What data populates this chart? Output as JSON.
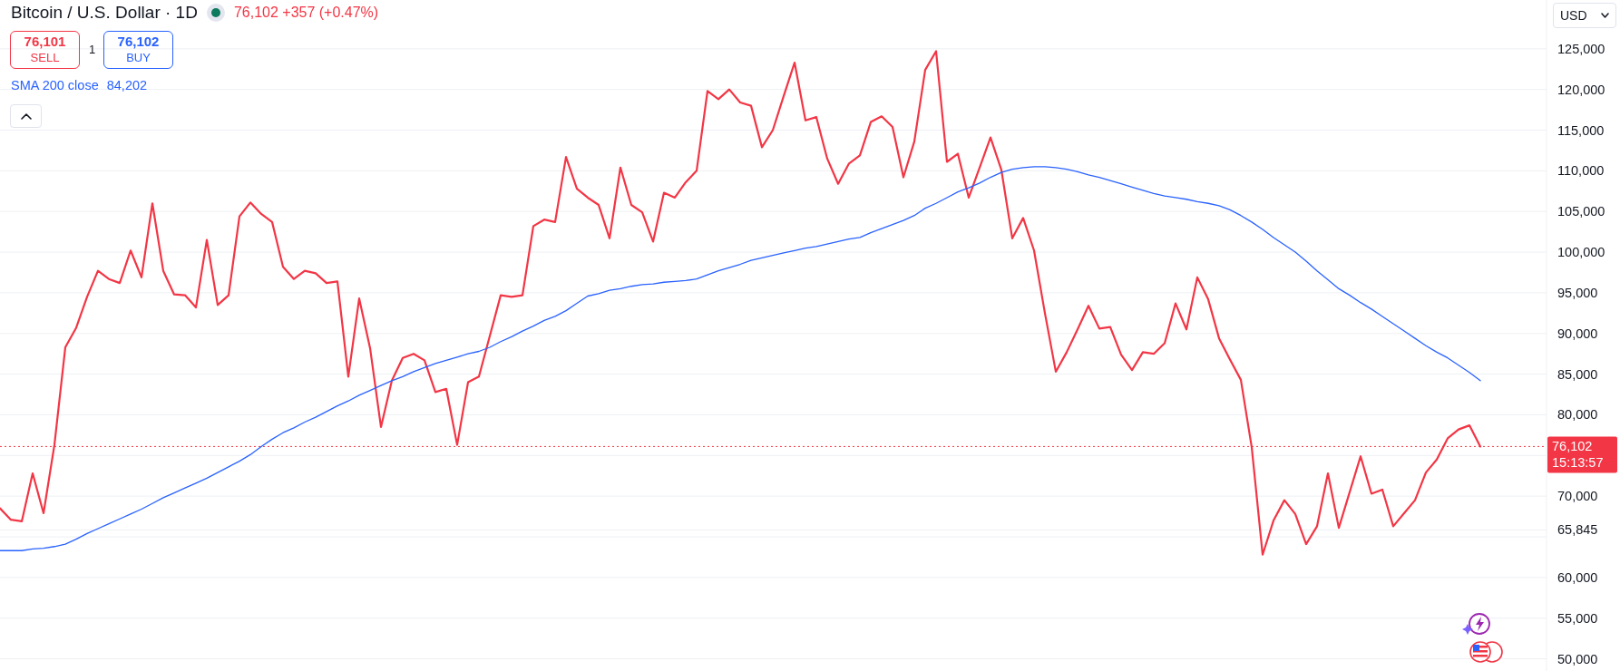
{
  "chart_data": {
    "type": "line",
    "title": "Bitcoin / U.S. Dollar · 1D",
    "subtitle": "76,102 +357 (+0.47%)",
    "ylabel": "USD",
    "annotations": [
      "76,101",
      "SELL",
      "1",
      "76,102",
      "BUY",
      "84,202",
      "15:13:57"
    ],
    "categories": [
      null,
      null,
      null,
      null,
      null,
      null,
      null,
      null,
      null,
      null,
      null,
      null,
      null,
      null,
      null,
      null,
      null,
      null,
      null,
      null,
      null,
      null,
      null,
      null,
      null,
      null,
      null,
      null,
      null,
      null,
      null,
      null,
      null,
      null,
      null,
      null,
      null,
      null,
      null,
      null,
      null,
      null,
      null,
      null,
      null,
      null,
      null,
      null,
      null,
      null,
      null,
      null,
      null,
      null,
      null,
      null,
      null,
      null,
      null,
      null,
      null,
      null,
      null,
      null,
      null,
      null,
      null,
      null,
      null,
      null,
      null,
      null,
      null,
      null,
      null,
      null,
      null,
      null,
      null,
      null,
      null,
      null,
      null,
      null,
      null,
      null,
      null,
      null,
      null,
      null,
      null,
      null,
      null,
      null,
      null,
      null,
      null,
      null,
      null,
      null,
      null,
      null,
      null,
      null,
      null,
      null,
      null,
      null,
      null,
      null,
      null,
      null,
      null,
      null,
      null,
      null,
      null,
      null,
      null,
      null,
      null,
      null,
      null,
      null,
      null,
      null,
      null,
      null,
      null,
      null,
      null,
      null,
      null,
      null,
      null,
      null,
      null,
      null,
      null,
      null,
      null,
      null,
      null
    ],
    "series": [
      {
        "color": "#f23645",
        "values": [
          68500,
          67100,
          66900,
          72800,
          67900,
          76300,
          88300,
          90700,
          94500,
          97700,
          96700,
          96200,
          100200,
          96900,
          106000,
          97700,
          94800,
          94700,
          93200,
          101500,
          93500,
          94700,
          104400,
          106100,
          104700,
          103700,
          98200,
          96700,
          97700,
          97400,
          96200,
          96400,
          84700,
          94300,
          88200,
          78500,
          84200,
          87000,
          87500,
          86700,
          82800,
          83200,
          76300,
          84000,
          84700,
          89700,
          94700,
          94500,
          94700,
          103200,
          104000,
          103700,
          111700,
          107800,
          106700,
          105800,
          101700,
          110400,
          105800,
          104900,
          101300,
          107300,
          106700,
          108600,
          110000,
          119800,
          118800,
          120000,
          118400,
          118000,
          112900,
          115000,
          119200,
          123300,
          116200,
          116600,
          111500,
          108400,
          110900,
          111900,
          116000,
          116700,
          115400,
          109200,
          113600,
          122400,
          124700,
          111100,
          112100,
          106700,
          110400,
          114100,
          110100,
          101700,
          104200,
          100200,
          92500,
          85300,
          87700,
          90500,
          93400,
          90600,
          90800,
          87400,
          85500,
          87700,
          87500,
          88800,
          93700,
          90500,
          96900,
          94200,
          89400,
          86800,
          84300,
          76000,
          62800,
          67000,
          69500,
          67800,
          64100,
          66300,
          72800,
          66100,
          70500,
          74900,
          70300,
          70800,
          66300,
          67900,
          69500,
          72900,
          74500,
          77100,
          78200,
          78700,
          76100,
          null,
          null,
          null,
          null,
          null,
          null
        ]
      },
      {
        "name": "SMA 200 close",
        "color": "#2962ff",
        "values": [
          63300,
          63300,
          63300,
          63500,
          63600,
          63800,
          64100,
          64700,
          65400,
          66000,
          66600,
          67200,
          67800,
          68400,
          69100,
          69800,
          70400,
          71000,
          71600,
          72200,
          72900,
          73600,
          74300,
          75100,
          76100,
          77000,
          77800,
          78400,
          79100,
          79700,
          80400,
          81100,
          81700,
          82400,
          83000,
          83600,
          84200,
          84700,
          85300,
          85800,
          86300,
          86700,
          87100,
          87500,
          87800,
          88300,
          89000,
          89600,
          90300,
          90900,
          91600,
          92100,
          92800,
          93700,
          94600,
          94900,
          95300,
          95500,
          95800,
          96000,
          96100,
          96300,
          96400,
          96500,
          96700,
          97200,
          97700,
          98100,
          98500,
          99000,
          99300,
          99600,
          99900,
          100200,
          100500,
          100700,
          101000,
          101300,
          101600,
          101800,
          102400,
          102900,
          103400,
          103900,
          104500,
          105400,
          106000,
          106700,
          107400,
          107900,
          108500,
          109200,
          109800,
          110200,
          110400,
          110500,
          110500,
          110400,
          110200,
          109900,
          109500,
          109200,
          108800,
          108400,
          108000,
          107600,
          107200,
          106900,
          106700,
          106500,
          106200,
          106000,
          105700,
          105200,
          104500,
          103700,
          102800,
          101800,
          100900,
          100000,
          98900,
          97700,
          96600,
          95500,
          94700,
          93800,
          93000,
          92100,
          91200,
          90300,
          89400,
          88500,
          87700,
          87000,
          86100,
          85200,
          84200,
          null,
          null,
          null,
          null,
          null,
          null
        ]
      }
    ],
    "ylim": [
      48500,
      131000
    ],
    "yticks": [
      {
        "value": 50000,
        "label": "50,000"
      },
      {
        "value": 55000,
        "label": "55,000"
      },
      {
        "value": 60000,
        "label": "60,000"
      },
      {
        "value": 65000,
        "label": null
      },
      {
        "value": 65845,
        "label": "65,845"
      },
      {
        "value": 70000,
        "label": "70,000"
      },
      {
        "value": 75000,
        "label": null
      },
      {
        "value": 80000,
        "label": "80,000"
      },
      {
        "value": 85000,
        "label": "85,000"
      },
      {
        "value": 90000,
        "label": "90,000"
      },
      {
        "value": 95000,
        "label": "95,000"
      },
      {
        "value": 100000,
        "label": "100,000"
      },
      {
        "value": 105000,
        "label": "105,000"
      },
      {
        "value": 110000,
        "label": "110,000"
      },
      {
        "value": 115000,
        "label": "115,000"
      },
      {
        "value": 120000,
        "label": "120,000"
      },
      {
        "value": 125000,
        "label": "125,000"
      }
    ],
    "ref_lines": [
      {
        "axis": "y",
        "value": 76102,
        "label": "76,102",
        "color": "#f23645",
        "line_style": "dotted"
      }
    ],
    "grid": "y",
    "legend": "top left"
  }
}
